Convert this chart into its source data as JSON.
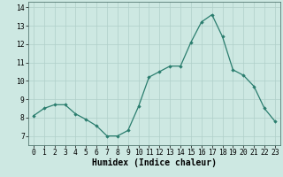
{
  "x": [
    0,
    1,
    2,
    3,
    4,
    5,
    6,
    7,
    8,
    9,
    10,
    11,
    12,
    13,
    14,
    15,
    16,
    17,
    18,
    19,
    20,
    21,
    22,
    23
  ],
  "y": [
    8.1,
    8.5,
    8.7,
    8.7,
    8.2,
    7.9,
    7.55,
    7.0,
    7.0,
    7.3,
    8.6,
    10.2,
    10.5,
    10.8,
    10.8,
    12.1,
    13.2,
    13.6,
    12.4,
    10.6,
    10.3,
    9.7,
    8.5,
    7.8
  ],
  "line_color": "#2a7d6e",
  "marker": "D",
  "marker_size": 1.8,
  "linewidth": 0.9,
  "xlabel": "Humidex (Indice chaleur)",
  "xlim": [
    -0.5,
    23.5
  ],
  "ylim": [
    6.5,
    14.3
  ],
  "yticks": [
    7,
    8,
    9,
    10,
    11,
    12,
    13,
    14
  ],
  "xticks": [
    0,
    1,
    2,
    3,
    4,
    5,
    6,
    7,
    8,
    9,
    10,
    11,
    12,
    13,
    14,
    15,
    16,
    17,
    18,
    19,
    20,
    21,
    22,
    23
  ],
  "bg_color": "#cde8e2",
  "grid_color": "#b0cfc9",
  "xlabel_fontsize": 7.0,
  "tick_fontsize": 5.8
}
